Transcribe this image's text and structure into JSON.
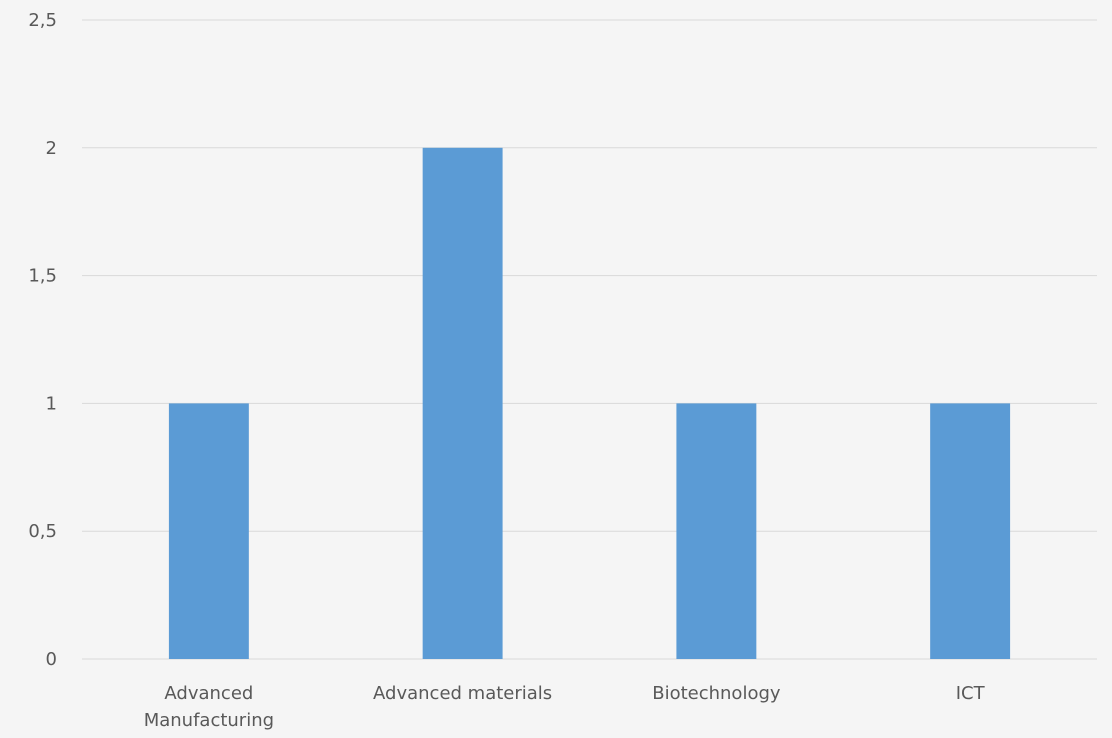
{
  "chart_data": {
    "type": "bar",
    "categories": [
      "Advanced Manufacturing",
      "Advanced materials",
      "Biotechnology",
      "ICT"
    ],
    "category_label_lines": [
      [
        "Advanced",
        "Manufacturing"
      ],
      [
        "Advanced materials"
      ],
      [
        "Biotechnology"
      ],
      [
        "ICT"
      ]
    ],
    "values": [
      1,
      2,
      1,
      1
    ],
    "title": "",
    "xlabel": "",
    "ylabel": "",
    "ylim": [
      0,
      2.5
    ],
    "yticks": [
      0,
      0.5,
      1,
      1.5,
      2,
      2.5
    ],
    "ytick_labels": [
      "0",
      "0,5",
      "1",
      "1,5",
      "2",
      "2,5"
    ],
    "grid": true,
    "legend": "none",
    "colors": {
      "bar": "#5b9bd5",
      "grid": "#d9d9d9",
      "text": "#595959",
      "background": "#f5f5f5"
    }
  }
}
